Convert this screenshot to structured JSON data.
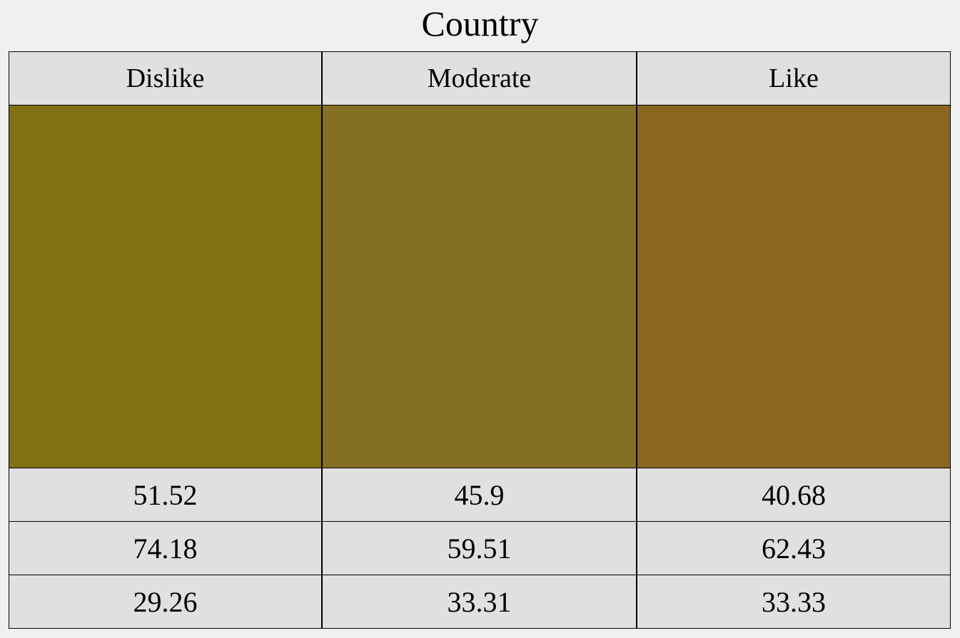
{
  "title": "Country",
  "columns": [
    {
      "label": "Dislike",
      "color": "#807115",
      "values": [
        "51.52",
        "74.18",
        "29.26"
      ]
    },
    {
      "label": "Moderate",
      "color": "#856f23",
      "values": [
        "45.9",
        "59.51",
        "33.31"
      ]
    },
    {
      "label": "Like",
      "color": "#8a6620",
      "values": [
        "40.68",
        "62.43",
        "33.33"
      ]
    }
  ]
}
